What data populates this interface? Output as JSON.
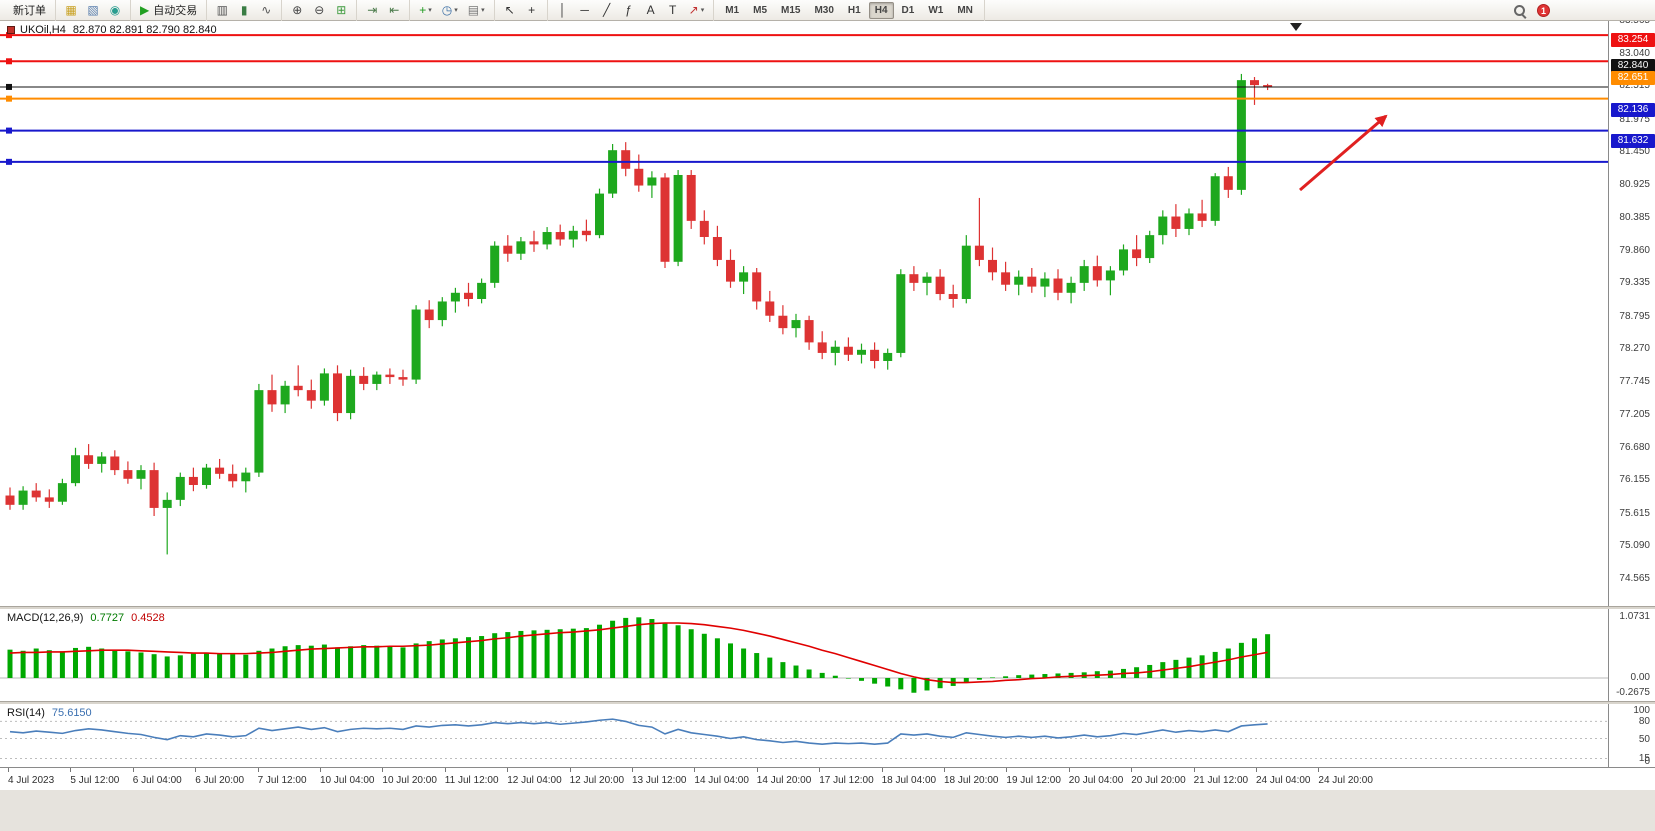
{
  "toolbar": {
    "notification_count": "1",
    "timeframes": [
      "M1",
      "M5",
      "M15",
      "M30",
      "H1",
      "H4",
      "D1",
      "W1",
      "MN"
    ],
    "active_timeframe": "H4",
    "groups": [
      {
        "items": [
          {
            "name": "new-order-button",
            "label": "新订单"
          }
        ]
      },
      {
        "items": [
          {
            "name": "new-chart-icon",
            "glyph": "▦",
            "color": "#c8a020"
          },
          {
            "name": "profiles-icon",
            "glyph": "▧",
            "color": "#5a7fae"
          },
          {
            "name": "market-watch-icon",
            "glyph": "◉",
            "color": "#2a9d8f"
          }
        ]
      },
      {
        "items": [
          {
            "name": "autotrading-button",
            "glyph": "▶",
            "color": "#22a022",
            "label": "自动交易"
          }
        ]
      },
      {
        "items": [
          {
            "name": "bar-chart-icon",
            "glyph": "▥",
            "color": "#555555"
          },
          {
            "name": "candlestick-chart-icon",
            "glyph": "▮",
            "color": "#3a7d44"
          },
          {
            "name": "line-chart-icon",
            "glyph": "∿",
            "color": "#555555"
          }
        ]
      },
      {
        "items": [
          {
            "name": "zoom-in-icon",
            "glyph": "⊕",
            "color": "#444444"
          },
          {
            "name": "zoom-out-icon",
            "glyph": "⊖",
            "color": "#444444"
          },
          {
            "name": "tile-windows-icon",
            "glyph": "⊞",
            "color": "#3c9a3c"
          }
        ]
      },
      {
        "items": [
          {
            "name": "auto-scroll-icon",
            "glyph": "⇥",
            "color": "#4a7a4a"
          },
          {
            "name": "chart-shift-icon",
            "glyph": "⇤",
            "color": "#4a7a4a"
          }
        ]
      },
      {
        "items": [
          {
            "name": "indicators-add-icon",
            "glyph": "+",
            "color": "#1f9a1f",
            "dropdown": true
          },
          {
            "name": "periods-icon",
            "glyph": "◷",
            "color": "#3a6ea5",
            "dropdown": true
          },
          {
            "name": "templates-icon",
            "glyph": "▤",
            "color": "#777777",
            "dropdown": true
          }
        ]
      },
      {
        "items": [
          {
            "name": "cursor-icon",
            "glyph": "↖",
            "color": "#333333"
          },
          {
            "name": "crosshair-icon",
            "glyph": "+",
            "color": "#333333"
          }
        ]
      },
      {
        "items": [
          {
            "name": "vertical-line-icon",
            "glyph": "│",
            "color": "#333333"
          },
          {
            "name": "horizontal-line-icon",
            "glyph": "─",
            "color": "#333333"
          },
          {
            "name": "trendline-icon",
            "glyph": "╱",
            "color": "#333333"
          },
          {
            "name": "fibonacci-icon",
            "glyph": "ƒ",
            "color": "#333333"
          },
          {
            "name": "text-icon",
            "glyph": "A",
            "color": "#333333"
          },
          {
            "name": "label-icon",
            "glyph": "T",
            "color": "#333333"
          },
          {
            "name": "arrows-icon",
            "glyph": "↗",
            "color": "#c03030",
            "dropdown": true
          }
        ]
      }
    ]
  },
  "chart": {
    "symbol": "UKOil,H4",
    "ohlc_text": "82.870 82.891 82.790 82.840",
    "arrow_color": "#e02020",
    "price_axis_labels": [
      "83.565",
      "83.040",
      "82.515",
      "81.975",
      "81.450",
      "80.925",
      "80.385",
      "79.860",
      "79.335",
      "78.795",
      "78.270",
      "77.745",
      "77.205",
      "76.680",
      "76.155",
      "75.615",
      "75.090",
      "74.565"
    ],
    "hlines": [
      {
        "price": "83.676",
        "color": "#ee1111",
        "width": 2
      },
      {
        "price": "83.254",
        "color": "#ee1111",
        "width": 2
      },
      {
        "price": "82.840",
        "color": "#111111",
        "width": 1,
        "current": true
      },
      {
        "price": "82.651",
        "color": "#ff8c00",
        "width": 2
      },
      {
        "price": "82.136",
        "color": "#1818cc",
        "width": 2
      },
      {
        "price": "81.632",
        "color": "#1818cc",
        "width": 2
      }
    ]
  },
  "macd": {
    "name": "MACD(12,26,9)",
    "value_main": "0.7727",
    "value_signal": "0.4528",
    "scale": [
      "1.0731",
      "0.00",
      "-0.2675"
    ]
  },
  "rsi": {
    "name": "RSI(14)",
    "value": "75.6150",
    "scale": [
      "100",
      "80",
      "50",
      "15",
      "0"
    ]
  },
  "time_axis": [
    "4 Jul 2023",
    "5 Jul 12:00",
    "6 Jul 04:00",
    "6 Jul 20:00",
    "7 Jul 12:00",
    "10 Jul 04:00",
    "10 Jul 20:00",
    "11 Jul 12:00",
    "12 Jul 04:00",
    "12 Jul 20:00",
    "13 Jul 12:00",
    "14 Jul 04:00",
    "14 Jul 20:00",
    "17 Jul 12:00",
    "18 Jul 04:00",
    "18 Jul 20:00",
    "19 Jul 12:00",
    "20 Jul 04:00",
    "20 Jul 20:00",
    "21 Jul 12:00",
    "24 Jul 04:00",
    "24 Jul 20:00"
  ],
  "chart_data": [
    {
      "type": "candlestick",
      "title": "UKOil H4",
      "up_color": "#1ea81e",
      "down_color": "#dd3333",
      "ylim": [
        74.3,
        83.8
      ],
      "ohlc": [
        [
          76.25,
          76.38,
          76.02,
          76.1
        ],
        [
          76.1,
          76.4,
          76.02,
          76.33
        ],
        [
          76.33,
          76.45,
          76.15,
          76.22
        ],
        [
          76.22,
          76.35,
          76.05,
          76.15
        ],
        [
          76.15,
          76.52,
          76.1,
          76.45
        ],
        [
          76.45,
          77.02,
          76.4,
          76.9
        ],
        [
          76.9,
          77.08,
          76.68,
          76.76
        ],
        [
          76.76,
          76.95,
          76.62,
          76.88
        ],
        [
          76.88,
          76.98,
          76.58,
          76.66
        ],
        [
          76.66,
          76.8,
          76.44,
          76.52
        ],
        [
          76.52,
          76.74,
          76.35,
          76.66
        ],
        [
          76.66,
          76.78,
          75.92,
          76.05
        ],
        [
          76.05,
          76.3,
          75.3,
          76.18
        ],
        [
          76.18,
          76.62,
          76.08,
          76.55
        ],
        [
          76.55,
          76.7,
          76.32,
          76.42
        ],
        [
          76.42,
          76.76,
          76.36,
          76.7
        ],
        [
          76.7,
          76.84,
          76.52,
          76.6
        ],
        [
          76.6,
          76.75,
          76.38,
          76.48
        ],
        [
          76.48,
          76.7,
          76.3,
          76.62
        ],
        [
          76.62,
          78.05,
          76.55,
          77.95
        ],
        [
          77.95,
          78.2,
          77.6,
          77.72
        ],
        [
          77.72,
          78.1,
          77.58,
          78.02
        ],
        [
          78.02,
          78.35,
          77.85,
          77.95
        ],
        [
          77.95,
          78.12,
          77.65,
          77.78
        ],
        [
          77.78,
          78.3,
          77.7,
          78.22
        ],
        [
          78.22,
          78.35,
          77.45,
          77.58
        ],
        [
          77.58,
          78.28,
          77.48,
          78.18
        ],
        [
          78.18,
          78.32,
          77.95,
          78.05
        ],
        [
          78.05,
          78.25,
          77.95,
          78.2
        ],
        [
          78.2,
          78.3,
          78.05,
          78.16
        ],
        [
          78.16,
          78.28,
          78.02,
          78.12
        ],
        [
          78.12,
          79.32,
          78.05,
          79.25
        ],
        [
          79.25,
          79.4,
          78.95,
          79.08
        ],
        [
          79.08,
          79.45,
          78.98,
          79.38
        ],
        [
          79.38,
          79.6,
          79.2,
          79.52
        ],
        [
          79.52,
          79.68,
          79.3,
          79.42
        ],
        [
          79.42,
          79.75,
          79.35,
          79.68
        ],
        [
          79.68,
          80.35,
          79.6,
          80.28
        ],
        [
          80.28,
          80.45,
          80.02,
          80.15
        ],
        [
          80.15,
          80.42,
          80.05,
          80.35
        ],
        [
          80.35,
          80.52,
          80.18,
          80.3
        ],
        [
          80.3,
          80.58,
          80.22,
          80.5
        ],
        [
          80.5,
          80.62,
          80.28,
          80.38
        ],
        [
          80.38,
          80.6,
          80.25,
          80.52
        ],
        [
          80.52,
          80.7,
          80.35,
          80.45
        ],
        [
          80.45,
          81.2,
          80.4,
          81.12
        ],
        [
          81.12,
          81.92,
          81.05,
          81.82
        ],
        [
          81.82,
          81.95,
          81.4,
          81.52
        ],
        [
          81.52,
          81.75,
          81.15,
          81.25
        ],
        [
          81.25,
          81.48,
          81.05,
          81.38
        ],
        [
          81.38,
          81.45,
          79.92,
          80.02
        ],
        [
          80.02,
          81.5,
          79.95,
          81.42
        ],
        [
          81.42,
          81.5,
          80.55,
          80.68
        ],
        [
          80.68,
          80.85,
          80.3,
          80.42
        ],
        [
          80.42,
          80.6,
          79.95,
          80.05
        ],
        [
          80.05,
          80.22,
          79.6,
          79.7
        ],
        [
          79.7,
          79.95,
          79.5,
          79.85
        ],
        [
          79.85,
          79.92,
          79.25,
          79.38
        ],
        [
          79.38,
          79.55,
          79.05,
          79.15
        ],
        [
          79.15,
          79.32,
          78.85,
          78.95
        ],
        [
          78.95,
          79.18,
          78.8,
          79.08
        ],
        [
          79.08,
          79.15,
          78.6,
          78.72
        ],
        [
          78.72,
          78.9,
          78.45,
          78.55
        ],
        [
          78.55,
          78.75,
          78.35,
          78.65
        ],
        [
          78.65,
          78.8,
          78.42,
          78.52
        ],
        [
          78.52,
          78.7,
          78.38,
          78.6
        ],
        [
          78.6,
          78.72,
          78.3,
          78.42
        ],
        [
          78.42,
          78.62,
          78.28,
          78.55
        ],
        [
          78.55,
          79.9,
          78.48,
          79.82
        ],
        [
          79.82,
          79.95,
          79.55,
          79.68
        ],
        [
          79.68,
          79.85,
          79.48,
          79.78
        ],
        [
          79.78,
          79.9,
          79.4,
          79.5
        ],
        [
          79.5,
          79.65,
          79.28,
          79.42
        ],
        [
          79.42,
          80.45,
          79.35,
          80.28
        ],
        [
          80.28,
          81.05,
          79.95,
          80.05
        ],
        [
          80.05,
          80.25,
          79.72,
          79.85
        ],
        [
          79.85,
          80.02,
          79.55,
          79.65
        ],
        [
          79.65,
          79.88,
          79.48,
          79.78
        ],
        [
          79.78,
          79.92,
          79.52,
          79.62
        ],
        [
          79.62,
          79.85,
          79.45,
          79.75
        ],
        [
          79.75,
          79.9,
          79.4,
          79.52
        ],
        [
          79.52,
          79.78,
          79.35,
          79.68
        ],
        [
          79.68,
          80.05,
          79.55,
          79.95
        ],
        [
          79.95,
          80.12,
          79.62,
          79.72
        ],
        [
          79.72,
          79.95,
          79.48,
          79.88
        ],
        [
          79.88,
          80.3,
          79.8,
          80.22
        ],
        [
          80.22,
          80.45,
          79.95,
          80.08
        ],
        [
          80.08,
          80.52,
          80.0,
          80.45
        ],
        [
          80.45,
          80.85,
          80.3,
          80.75
        ],
        [
          80.75,
          80.95,
          80.42,
          80.55
        ],
        [
          80.55,
          80.88,
          80.45,
          80.8
        ],
        [
          80.8,
          81.02,
          80.58,
          80.68
        ],
        [
          80.68,
          81.45,
          80.6,
          81.4
        ],
        [
          81.4,
          81.55,
          81.05,
          81.18
        ],
        [
          81.18,
          83.05,
          81.1,
          82.95
        ],
        [
          82.95,
          83.0,
          82.55,
          82.87
        ],
        [
          82.87,
          82.891,
          82.79,
          82.84
        ]
      ]
    },
    {
      "type": "bar",
      "name": "MACD(12,26,9)",
      "ylim": [
        -0.2675,
        1.0731
      ],
      "histogram_color": "#00a800",
      "signal_color": "#e00000",
      "values": [
        0.5,
        0.48,
        0.52,
        0.49,
        0.47,
        0.53,
        0.55,
        0.52,
        0.5,
        0.47,
        0.45,
        0.42,
        0.38,
        0.4,
        0.43,
        0.45,
        0.44,
        0.42,
        0.41,
        0.48,
        0.52,
        0.56,
        0.58,
        0.57,
        0.59,
        0.54,
        0.56,
        0.58,
        0.57,
        0.56,
        0.54,
        0.61,
        0.65,
        0.68,
        0.7,
        0.72,
        0.74,
        0.79,
        0.81,
        0.83,
        0.84,
        0.85,
        0.86,
        0.87,
        0.88,
        0.94,
        1.01,
        1.06,
        1.07,
        1.04,
        0.96,
        0.93,
        0.86,
        0.78,
        0.7,
        0.61,
        0.52,
        0.44,
        0.36,
        0.28,
        0.22,
        0.15,
        0.09,
        0.04,
        0.0,
        -0.05,
        -0.1,
        -0.15,
        -0.2,
        -0.26,
        -0.22,
        -0.18,
        -0.14,
        -0.08,
        -0.03,
        0.01,
        0.03,
        0.05,
        0.06,
        0.07,
        0.08,
        0.09,
        0.1,
        0.12,
        0.13,
        0.16,
        0.19,
        0.23,
        0.28,
        0.32,
        0.36,
        0.4,
        0.46,
        0.52,
        0.62,
        0.7,
        0.7727
      ],
      "signal": [
        0.44,
        0.45,
        0.45,
        0.46,
        0.46,
        0.47,
        0.48,
        0.49,
        0.49,
        0.49,
        0.48,
        0.47,
        0.46,
        0.45,
        0.44,
        0.44,
        0.43,
        0.43,
        0.43,
        0.44,
        0.45,
        0.47,
        0.49,
        0.51,
        0.52,
        0.53,
        0.54,
        0.55,
        0.55,
        0.56,
        0.56,
        0.57,
        0.58,
        0.6,
        0.62,
        0.64,
        0.66,
        0.69,
        0.71,
        0.74,
        0.76,
        0.78,
        0.8,
        0.81,
        0.83,
        0.85,
        0.88,
        0.91,
        0.94,
        0.96,
        0.97,
        0.97,
        0.96,
        0.94,
        0.91,
        0.88,
        0.84,
        0.79,
        0.74,
        0.68,
        0.62,
        0.56,
        0.49,
        0.43,
        0.36,
        0.29,
        0.22,
        0.15,
        0.08,
        0.02,
        -0.03,
        -0.06,
        -0.08,
        -0.08,
        -0.07,
        -0.06,
        -0.04,
        -0.03,
        -0.01,
        0.0,
        0.02,
        0.03,
        0.04,
        0.05,
        0.06,
        0.08,
        0.09,
        0.11,
        0.14,
        0.17,
        0.2,
        0.24,
        0.28,
        0.32,
        0.37,
        0.41,
        0.4528
      ]
    },
    {
      "type": "line",
      "name": "RSI(14)",
      "ylim": [
        0,
        100
      ],
      "levels": [
        80,
        50,
        15
      ],
      "color": "#4a7ebb",
      "values": [
        62,
        60,
        63,
        61,
        59,
        64,
        67,
        65,
        62,
        59,
        57,
        52,
        48,
        55,
        53,
        58,
        56,
        53,
        55,
        68,
        64,
        67,
        70,
        66,
        69,
        62,
        66,
        68,
        67,
        68,
        66,
        72,
        70,
        73,
        74,
        72,
        74,
        78,
        76,
        78,
        76,
        78,
        75,
        77,
        79,
        82,
        84,
        80,
        73,
        70,
        58,
        66,
        60,
        57,
        54,
        50,
        53,
        48,
        46,
        43,
        45,
        42,
        40,
        42,
        41,
        42,
        40,
        42,
        58,
        56,
        58,
        54,
        52,
        60,
        57,
        54,
        52,
        54,
        52,
        54,
        51,
        53,
        56,
        53,
        55,
        59,
        57,
        61,
        65,
        61,
        64,
        62,
        65,
        62,
        72,
        74,
        75.6
      ]
    }
  ]
}
